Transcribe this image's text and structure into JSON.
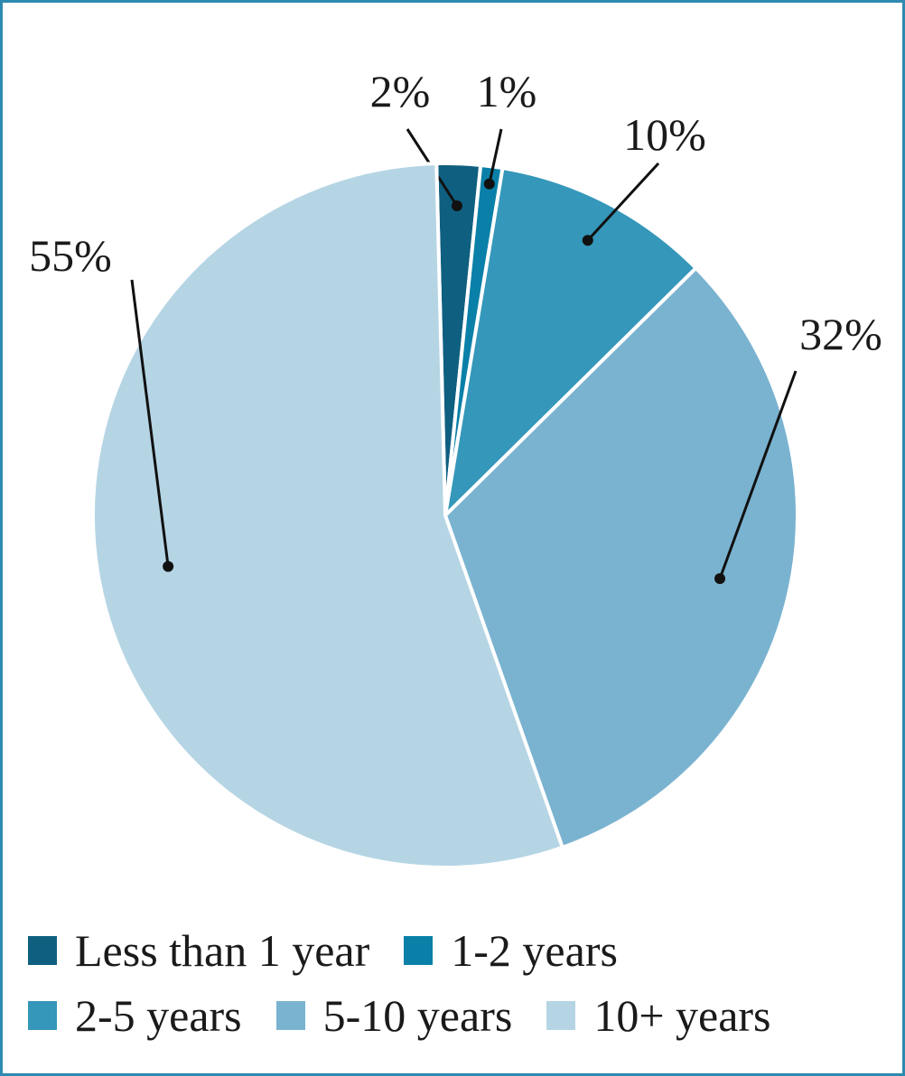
{
  "chart_data": {
    "type": "pie",
    "slices": [
      {
        "name": "Less than 1 year",
        "value": 2,
        "label": "2%",
        "color": "#0f5f80"
      },
      {
        "name": "1-2 years",
        "value": 1,
        "label": "1%",
        "color": "#0a80a8"
      },
      {
        "name": "2-5 years",
        "value": 10,
        "label": "10%",
        "color": "#3597ba"
      },
      {
        "name": "5-10 years",
        "value": 32,
        "label": "32%",
        "color": "#7ab3d0"
      },
      {
        "name": "10+ years",
        "value": 55,
        "label": "55%",
        "color": "#b5d5e4"
      }
    ],
    "legend": {
      "position": "bottom",
      "rows": [
        [
          "Less than 1 year",
          "1-2 years"
        ],
        [
          "2-5 years",
          "5-10 years",
          "10+ years"
        ]
      ]
    }
  }
}
